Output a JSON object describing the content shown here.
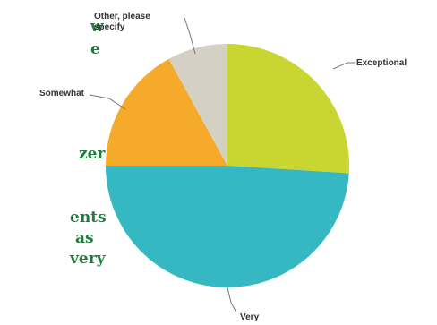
{
  "chart_data": {
    "type": "pie",
    "series": [
      {
        "values": [
          26,
          49,
          17,
          8
        ]
      }
    ],
    "categories": [
      "Exceptional",
      "Very",
      "Somewhat",
      "Other, please specify"
    ],
    "colors": [
      "#c9d530",
      "#35b8c1",
      "#f5aa2b",
      "#d4d1c4"
    ],
    "title": "",
    "legend": "none"
  },
  "background_text": {
    "fragments": [
      "w",
      "e",
      "zer",
      "ents",
      "as",
      "very"
    ]
  }
}
